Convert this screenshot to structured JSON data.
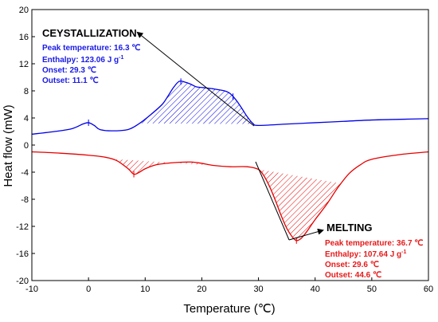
{
  "chart_data": {
    "type": "line",
    "xlabel": "Temperature (℃)",
    "ylabel": "Heat flow (mW)",
    "xlim": [
      -10,
      60
    ],
    "ylim": [
      -20,
      20
    ],
    "xticks": [
      -10,
      0,
      10,
      20,
      30,
      40,
      50,
      60
    ],
    "yticks": [
      -20,
      -16,
      -12,
      -8,
      -4,
      0,
      4,
      8,
      12,
      16,
      20
    ],
    "grid": false,
    "series": [
      {
        "color": "#0000e6",
        "x": [
          -10,
          -6,
          -3,
          -1,
          0,
          1,
          2,
          4,
          7,
          9,
          11,
          13,
          14,
          15,
          16,
          17,
          18,
          19,
          20,
          22,
          24,
          25,
          26,
          27,
          28,
          29,
          30,
          35,
          40,
          45,
          50,
          55,
          60
        ],
        "y": [
          1.6,
          2.0,
          2.4,
          3.1,
          3.3,
          2.9,
          2.3,
          2.1,
          2.3,
          3.2,
          4.5,
          6.0,
          7.2,
          8.5,
          9.4,
          9.3,
          9.0,
          8.6,
          8.5,
          8.3,
          8.0,
          7.6,
          6.7,
          5.5,
          4.2,
          3.2,
          2.9,
          3.1,
          3.3,
          3.5,
          3.7,
          3.8,
          3.9
        ]
      },
      {
        "color": "#e60000",
        "x": [
          -10,
          -5,
          0,
          3,
          5,
          7,
          8,
          9,
          10,
          12,
          15,
          18,
          20,
          22,
          25,
          28,
          30,
          31,
          32,
          33,
          34,
          35,
          36,
          36.7,
          37.5,
          38.5,
          40,
          42,
          44,
          46,
          48,
          50,
          55,
          60
        ],
        "y": [
          -1.0,
          -1.2,
          -1.5,
          -1.8,
          -2.3,
          -3.5,
          -4.3,
          -4.0,
          -3.5,
          -2.9,
          -2.6,
          -2.5,
          -2.7,
          -3.0,
          -3.2,
          -3.2,
          -3.6,
          -4.6,
          -6.2,
          -8.2,
          -10.4,
          -12.3,
          -13.6,
          -14.1,
          -13.8,
          -12.8,
          -11.0,
          -8.8,
          -6.3,
          -4.2,
          -2.9,
          -2.1,
          -1.4,
          -1.0
        ]
      }
    ],
    "crystallization_annotation": {
      "title": "CEYSTALLIZATION",
      "lines": [
        "Peak temperature: 16.3 ℃",
        "Enthalpy: 123.06 J g",
        "Onset: 29.3 ℃",
        "Outset: 11.1 ℃"
      ],
      "enthalpy_unit_superscript": "-1",
      "color": "#1a1ae6",
      "peak_x": 16.3,
      "onset_x": 29.3,
      "outset_x": 11.1
    },
    "melting_annotation": {
      "title": "MELTING",
      "lines": [
        "Peak temperature: 36.7 ℃",
        "Enthalpy: 107.64 J g",
        "Onset: 29.6 ℃",
        "Outset: 44.6 ℃"
      ],
      "enthalpy_unit_superscript": "-1",
      "color": "#e61a1a",
      "peak_x": 36.7,
      "onset_x": 29.6,
      "outset_x": 44.6
    }
  }
}
